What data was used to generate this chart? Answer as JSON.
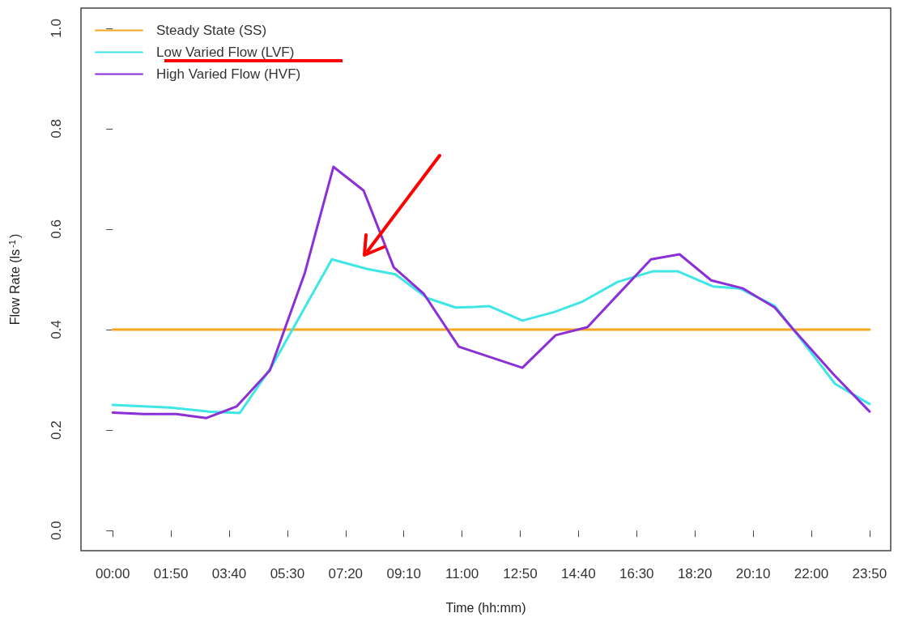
{
  "chart_data": {
    "type": "line",
    "xlabel": "Time (hh:mm)",
    "ylabel": "Flow Rate (ls$^{-1}$)",
    "xlim": [
      -1,
      24.5
    ],
    "ylim": [
      -0.04,
      1.04
    ],
    "xticks": [
      {
        "value": 0,
        "label": "00:00"
      },
      {
        "value": 1.8333,
        "label": "01:50"
      },
      {
        "value": 3.6667,
        "label": "03:40"
      },
      {
        "value": 5.5,
        "label": "05:30"
      },
      {
        "value": 7.3333,
        "label": "07:20"
      },
      {
        "value": 9.1667,
        "label": "09:10"
      },
      {
        "value": 11,
        "label": "11:00"
      },
      {
        "value": 12.8333,
        "label": "12:50"
      },
      {
        "value": 14.6667,
        "label": "14:40"
      },
      {
        "value": 16.5,
        "label": "16:30"
      },
      {
        "value": 18.3333,
        "label": "18:20"
      },
      {
        "value": 20.1667,
        "label": "20:10"
      },
      {
        "value": 22,
        "label": "22:00"
      },
      {
        "value": 23.8333,
        "label": "23:50"
      }
    ],
    "yticks": [
      {
        "value": 0,
        "label": "0.0"
      },
      {
        "value": 0.2,
        "label": "0.2"
      },
      {
        "value": 0.4,
        "label": "0.4"
      },
      {
        "value": 0.6,
        "label": "0.6"
      },
      {
        "value": 0.8,
        "label": "0.8"
      },
      {
        "value": 1,
        "label": "1.0"
      }
    ],
    "grid": false,
    "legend": "top left",
    "marker": "none",
    "line_style": "solid",
    "series": [
      {
        "name": "Steady State (SS)",
        "color": "#f5a623",
        "x": [
          0,
          23.8333
        ],
        "values": [
          0.4,
          0.4
        ]
      },
      {
        "name": "Low Varied Flow (LVF)",
        "color": "#3ee6e6",
        "x": [
          0,
          1.8,
          3.0,
          4.0,
          5.0,
          6.9,
          8.0,
          8.9,
          9.9,
          10.8,
          11.4,
          11.85,
          12.9,
          13.9,
          14.8,
          15.9,
          17.0,
          17.8,
          18.9,
          19.75,
          20.85,
          21.4,
          22.75,
          23.8333
        ],
        "values": [
          0.25,
          0.245,
          0.237,
          0.234,
          0.326,
          0.54,
          0.521,
          0.51,
          0.463,
          0.444,
          0.445,
          0.447,
          0.418,
          0.435,
          0.456,
          0.495,
          0.516,
          0.516,
          0.486,
          0.482,
          0.447,
          0.403,
          0.292,
          0.252
        ]
      },
      {
        "name": "High Varied Flow (HVF)",
        "color": "#8b2fd6",
        "x": [
          0,
          0.97,
          2.0,
          2.95,
          3.9,
          4.95,
          6.05,
          6.95,
          7.9,
          8.85,
          9.8,
          10.9,
          12.9,
          13.95,
          14.95,
          16.95,
          17.85,
          18.85,
          19.85,
          20.85,
          21.4,
          22.7,
          23.8333
        ],
        "values": [
          0.235,
          0.232,
          0.232,
          0.224,
          0.247,
          0.319,
          0.513,
          0.724,
          0.677,
          0.524,
          0.471,
          0.366,
          0.324,
          0.389,
          0.405,
          0.54,
          0.55,
          0.498,
          0.482,
          0.444,
          0.403,
          0.311,
          0.237
        ]
      }
    ]
  }
}
